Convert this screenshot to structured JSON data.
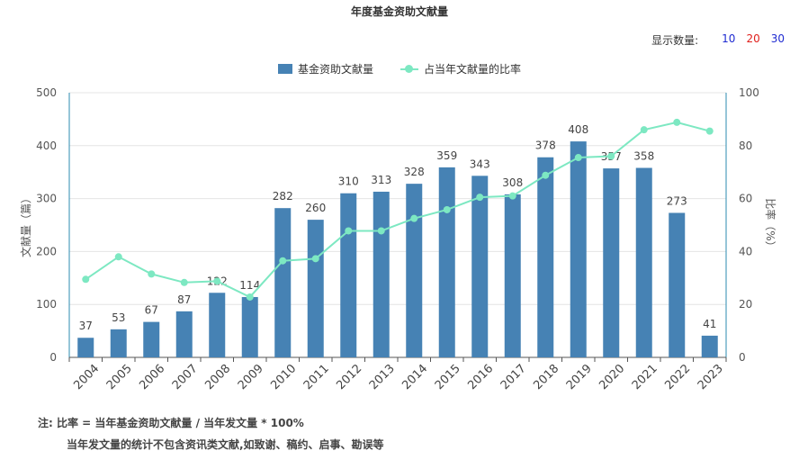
{
  "chart_data": {
    "type": "bar",
    "title": "年度基金资助文献量",
    "categories": [
      "2004",
      "2005",
      "2006",
      "2007",
      "2008",
      "2009",
      "2010",
      "2011",
      "2012",
      "2013",
      "2014",
      "2015",
      "2016",
      "2017",
      "2018",
      "2019",
      "2020",
      "2021",
      "2022",
      "2023"
    ],
    "series": [
      {
        "name": "基金资助文献量",
        "type": "bar",
        "axis": "left",
        "values": [
          37,
          53,
          67,
          87,
          122,
          114,
          282,
          260,
          310,
          313,
          328,
          359,
          343,
          308,
          378,
          408,
          357,
          358,
          273,
          41
        ]
      },
      {
        "name": "占当年文献量的比率",
        "type": "line",
        "axis": "right",
        "values": [
          29.5,
          38,
          31.5,
          28.3,
          28.8,
          22.8,
          36.5,
          37.3,
          47.8,
          47.8,
          52.5,
          55.8,
          60.5,
          61,
          68.8,
          75.5,
          76,
          86,
          88.8,
          85.5
        ]
      }
    ],
    "ylabel": "文献量（篇）",
    "ylabel_right": "比率（%）",
    "ylim": [
      0,
      500
    ],
    "y_ticks": [
      "0",
      "100",
      "200",
      "300",
      "400",
      "500"
    ],
    "ylim_right": [
      0,
      100
    ],
    "y_ticks_right": [
      "0",
      "20",
      "40",
      "60",
      "80",
      "100"
    ],
    "grid": true,
    "legend": "top-center",
    "colors": {
      "bar": "#4682b4",
      "line": "#7de8c2"
    }
  },
  "count_selector": {
    "label": "显示数量:",
    "options": [
      {
        "text": "10",
        "color": "#1f2bd1"
      },
      {
        "text": "20",
        "color": "#e0201d"
      },
      {
        "text": "30",
        "color": "#1f2bd1"
      }
    ]
  },
  "notes": {
    "line1": "注:  比率 = 当年基金资助文献量 / 当年发文量 * 100%",
    "line2": "当年发文量的统计不包含资讯类文献,如致谢、稿约、启事、勘误等"
  }
}
